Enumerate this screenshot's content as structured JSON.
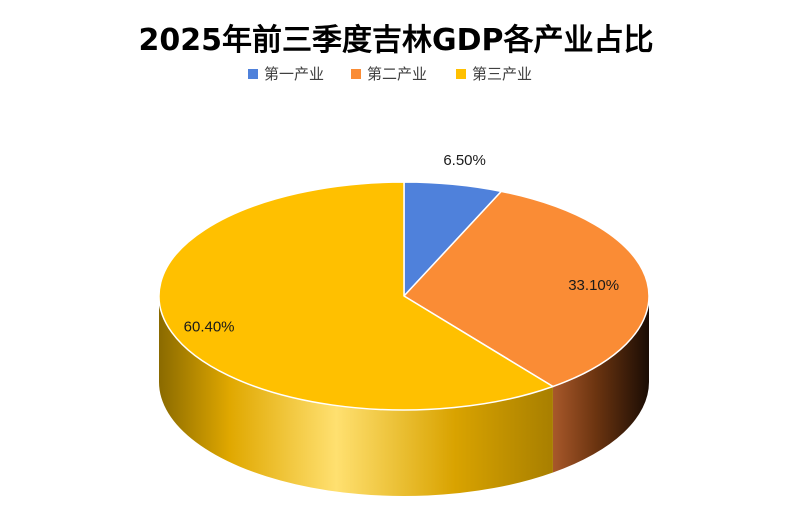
{
  "chart_data": {
    "type": "pie",
    "title": "2025年前三季度吉林GDP各产业占比",
    "categories": [
      "第一产业",
      "第二产业",
      "第三产业"
    ],
    "values": [
      6.5,
      33.1,
      60.4
    ],
    "labels": [
      "6.50%",
      "33.10%",
      "60.40%"
    ],
    "colors": [
      "#4F81DB",
      "#FA8C35",
      "#FFC000"
    ],
    "legend_position": "top",
    "style": "3d"
  }
}
